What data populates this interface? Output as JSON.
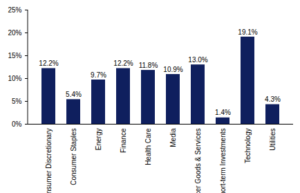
{
  "chart_data": {
    "type": "bar",
    "categories": [
      "Consumer Discretionary",
      "Consumer Staples",
      "Energy",
      "Finance",
      "Health Care",
      "Media",
      "Producer Goods & Services",
      "Short-term Investments",
      "Technology",
      "Utilities"
    ],
    "values": [
      12.2,
      5.4,
      9.7,
      12.2,
      11.8,
      10.9,
      13.0,
      1.4,
      19.1,
      4.3
    ],
    "value_labels": [
      "12.2%",
      "5.4%",
      "9.7%",
      "12.2%",
      "11.8%",
      "10.9%",
      "13.0%",
      "1.4%",
      "19.1%",
      "4.3%"
    ],
    "color": "#0f1f5e",
    "ylim": [
      0,
      25
    ],
    "yticks": [
      {
        "value": 0,
        "label": "0%"
      },
      {
        "value": 5,
        "label": "5%"
      },
      {
        "value": 10,
        "label": "10%"
      },
      {
        "value": 15,
        "label": "15%"
      },
      {
        "value": 20,
        "label": "20%"
      },
      {
        "value": 25,
        "label": "25%"
      }
    ],
    "data_labels": true,
    "grid": false
  }
}
